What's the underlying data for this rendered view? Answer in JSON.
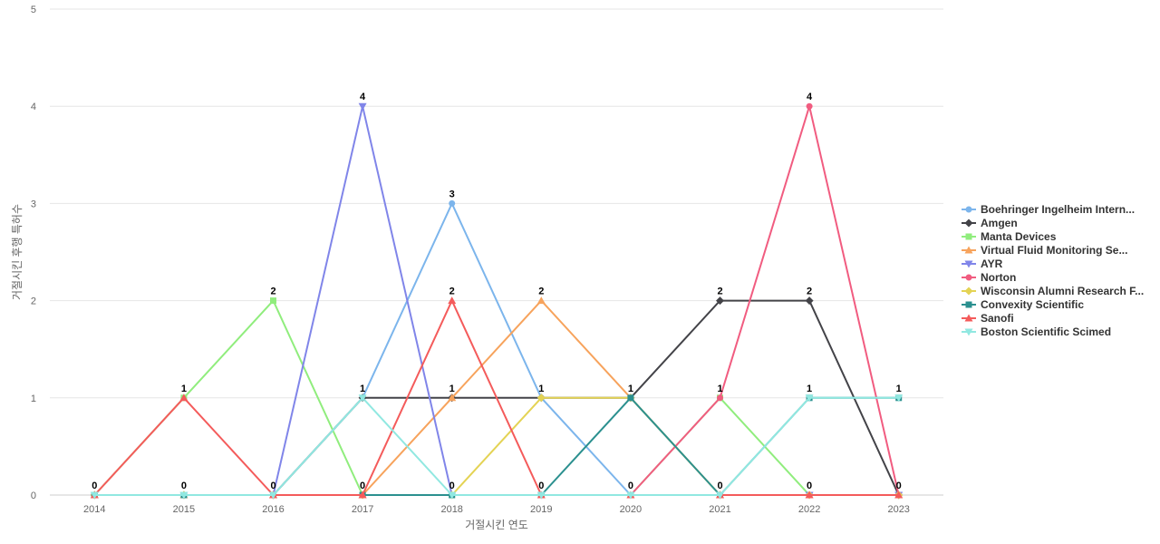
{
  "chart_data": {
    "type": "line",
    "xlabel": "거절시킨 연도",
    "ylabel": "거절시킨 후행 특허수",
    "ylim": [
      0,
      5
    ],
    "yticks": [
      0,
      1,
      2,
      3,
      4,
      5
    ],
    "x": [
      "2014",
      "2015",
      "2016",
      "2017",
      "2018",
      "2019",
      "2020",
      "2021",
      "2022",
      "2023"
    ],
    "grid": true,
    "legend_position": "right",
    "series": [
      {
        "name": "Boehringer Ingelheim Intern...",
        "color": "#7cb5ec",
        "marker": "circle",
        "values": [
          0,
          0,
          0,
          1,
          3,
          1,
          0,
          0,
          0,
          0
        ]
      },
      {
        "name": "Amgen",
        "color": "#434348",
        "marker": "diamond",
        "values": [
          0,
          0,
          0,
          1,
          1,
          1,
          1,
          2,
          2,
          0
        ]
      },
      {
        "name": "Manta Devices",
        "color": "#90ed7d",
        "marker": "square",
        "values": [
          0,
          1,
          2,
          0,
          0,
          0,
          0,
          1,
          0,
          0
        ]
      },
      {
        "name": "Virtual Fluid Monitoring Se...",
        "color": "#f7a35c",
        "marker": "triangle",
        "values": [
          0,
          0,
          0,
          0,
          1,
          2,
          1,
          0,
          0,
          0
        ]
      },
      {
        "name": "AYR",
        "color": "#8085e9",
        "marker": "triangle-down",
        "values": [
          0,
          0,
          0,
          4,
          0,
          0,
          0,
          0,
          0,
          0
        ]
      },
      {
        "name": "Norton",
        "color": "#f15c80",
        "marker": "circle",
        "values": [
          0,
          0,
          0,
          0,
          0,
          0,
          0,
          1,
          4,
          0
        ]
      },
      {
        "name": "Wisconsin Alumni Research F...",
        "color": "#e4d354",
        "marker": "diamond",
        "values": [
          0,
          0,
          0,
          0,
          0,
          1,
          1,
          0,
          0,
          0
        ]
      },
      {
        "name": "Convexity Scientific",
        "color": "#2b908f",
        "marker": "square",
        "values": [
          0,
          0,
          0,
          0,
          0,
          0,
          1,
          0,
          1,
          1
        ]
      },
      {
        "name": "Sanofi",
        "color": "#f45b5b",
        "marker": "triangle",
        "values": [
          0,
          1,
          0,
          0,
          2,
          0,
          0,
          0,
          0,
          0
        ]
      },
      {
        "name": "Boston Scientific Scimed",
        "color": "#91e8e1",
        "marker": "triangle-down",
        "values": [
          0,
          0,
          0,
          1,
          0,
          0,
          0,
          0,
          1,
          1
        ]
      }
    ],
    "data_labels": [
      {
        "x": "2014",
        "value": 0
      },
      {
        "x": "2015",
        "value": 1
      },
      {
        "x": "2015",
        "value": 0
      },
      {
        "x": "2016",
        "value": 2
      },
      {
        "x": "2016",
        "value": 0
      },
      {
        "x": "2017",
        "value": 4
      },
      {
        "x": "2017",
        "value": 1
      },
      {
        "x": "2017",
        "value": 0
      },
      {
        "x": "2018",
        "value": 3
      },
      {
        "x": "2018",
        "value": 2
      },
      {
        "x": "2018",
        "value": 1
      },
      {
        "x": "2018",
        "value": 0
      },
      {
        "x": "2019",
        "value": 2
      },
      {
        "x": "2019",
        "value": 1
      },
      {
        "x": "2019",
        "value": 0
      },
      {
        "x": "2020",
        "value": 1
      },
      {
        "x": "2020",
        "value": 0
      },
      {
        "x": "2021",
        "value": 2
      },
      {
        "x": "2021",
        "value": 1
      },
      {
        "x": "2021",
        "value": 0
      },
      {
        "x": "2022",
        "value": 4
      },
      {
        "x": "2022",
        "value": 2
      },
      {
        "x": "2022",
        "value": 1
      },
      {
        "x": "2022",
        "value": 0
      },
      {
        "x": "2023",
        "value": 1
      },
      {
        "x": "2023",
        "value": 0
      }
    ]
  }
}
